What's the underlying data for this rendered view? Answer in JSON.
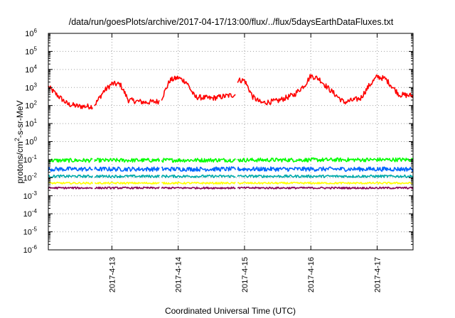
{
  "chart_data": {
    "type": "line",
    "title": "/data/run/goesPlots/archive/2017-04-17/13:00/flux/../flux/5daysEarthDataFluxes.txt",
    "xlabel": "Coordinated Universal Time (UTC)",
    "ylabel": "protons/cm2-s-sr-MeV",
    "ylabel_parts": {
      "base": "protons/cm",
      "sup": "2",
      "rest": "-s-sr-MeV"
    },
    "yscale": "log",
    "ylim": [
      1e-06,
      1000000.0
    ],
    "xlim": [
      "2017-04-12T01:00",
      "2017-04-17T13:00"
    ],
    "ytick_base": "10",
    "yticks": [
      "-6",
      "-5",
      "-4",
      "-3",
      "-2",
      "-1",
      "0",
      "1",
      "2",
      "3",
      "4",
      "5",
      "6"
    ],
    "xticks": [
      "2017-4-13",
      "2017-4-14",
      "2017-4-15",
      "2017-4-16",
      "2017-4-17"
    ],
    "grid": true,
    "data_gaps": [
      [
        "2017-04-12T17:05",
        "2017-04-12T17:45"
      ],
      [
        "2017-04-13T17:15",
        "2017-04-13T17:55"
      ],
      [
        "2017-04-14T20:50",
        "2017-04-14T21:20"
      ]
    ],
    "series": [
      {
        "color": "#ff0000",
        "noise_log10": 0.15,
        "x": [
          "2017-04-12T01:00",
          "2017-04-12T04:00",
          "2017-04-12T08:00",
          "2017-04-12T12:00",
          "2017-04-12T17:00",
          "2017-04-12T18:00",
          "2017-04-12T21:00",
          "2017-04-13T00:00",
          "2017-04-13T03:00",
          "2017-04-13T06:00",
          "2017-04-13T12:00",
          "2017-04-13T17:00",
          "2017-04-13T18:00",
          "2017-04-13T21:00",
          "2017-04-14T00:00",
          "2017-04-14T03:00",
          "2017-04-14T06:00",
          "2017-04-14T12:00",
          "2017-04-14T18:00",
          "2017-04-14T20:50",
          "2017-04-14T21:20",
          "2017-04-15T00:00",
          "2017-04-15T03:00",
          "2017-04-15T06:00",
          "2017-04-15T12:00",
          "2017-04-15T18:00",
          "2017-04-15T22:00",
          "2017-04-16T00:00",
          "2017-04-16T03:00",
          "2017-04-16T06:00",
          "2017-04-16T12:00",
          "2017-04-16T18:00",
          "2017-04-16T21:00",
          "2017-04-17T00:00",
          "2017-04-17T03:00",
          "2017-04-17T08:00",
          "2017-04-17T13:00"
        ],
        "y": [
          1100,
          400,
          120,
          90,
          90,
          120,
          600,
          1600,
          1500,
          200,
          150,
          170,
          250,
          2500,
          3500,
          2000,
          300,
          250,
          350,
          400,
          2500,
          2500,
          300,
          140,
          180,
          400,
          1500,
          4500,
          3000,
          1000,
          150,
          250,
          1200,
          4000,
          3000,
          400,
          350
        ]
      },
      {
        "color": "#00ff00",
        "noise_log10": 0.11,
        "x": [
          "2017-04-12T01:00",
          "2017-04-17T13:00"
        ],
        "y": [
          0.09,
          0.1
        ]
      },
      {
        "color": "#0066ff",
        "noise_log10": 0.12,
        "x": [
          "2017-04-12T01:00",
          "2017-04-17T13:00"
        ],
        "y": [
          0.03,
          0.03
        ]
      },
      {
        "color": "#00aaaa",
        "noise_log10": 0.07,
        "x": [
          "2017-04-12T01:00",
          "2017-04-17T13:00"
        ],
        "y": [
          0.012,
          0.012
        ]
      },
      {
        "color": "#ffff00",
        "noise_log10": 0.05,
        "x": [
          "2017-04-12T01:00",
          "2017-04-17T13:00"
        ],
        "y": [
          0.005,
          0.005
        ]
      },
      {
        "color": "#880055",
        "noise_log10": 0.05,
        "x": [
          "2017-04-12T01:00",
          "2017-04-17T13:00"
        ],
        "y": [
          0.0027,
          0.0027
        ]
      }
    ]
  }
}
